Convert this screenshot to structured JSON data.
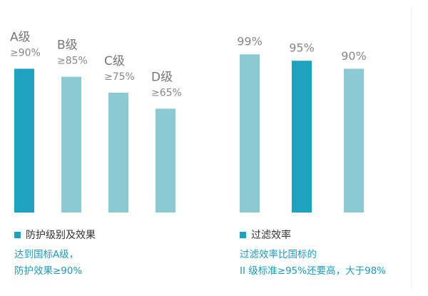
{
  "chart_data": [
    {
      "type": "bar",
      "categories": [
        "A级",
        "B级",
        "C级",
        "D级"
      ],
      "values": [
        90,
        85,
        75,
        65
      ],
      "value_labels": [
        "≥90%",
        "≥85%",
        "≥75%",
        "≥65%"
      ],
      "colors": [
        "#1ea2bf",
        "#8bcad3",
        "#8bcad3",
        "#8bcad3"
      ],
      "legend": {
        "name": "防护级别及效果",
        "color": "#1ea2bf"
      },
      "annotation": [
        "达到国标A级，",
        "防护效果≥90%"
      ]
    },
    {
      "type": "bar",
      "categories": [
        null,
        null,
        null
      ],
      "values": [
        99,
        95,
        90
      ],
      "value_labels": [
        "99%",
        "95%",
        "90%"
      ],
      "colors": [
        "#8bcad3",
        "#1ea2bf",
        "#8bcad3"
      ],
      "legend": {
        "name": "过滤效率",
        "color": "#1ea2bf"
      },
      "annotation": [
        "过滤效率比国标的",
        "II 级标准≥95%还要高，大于98%"
      ]
    }
  ]
}
